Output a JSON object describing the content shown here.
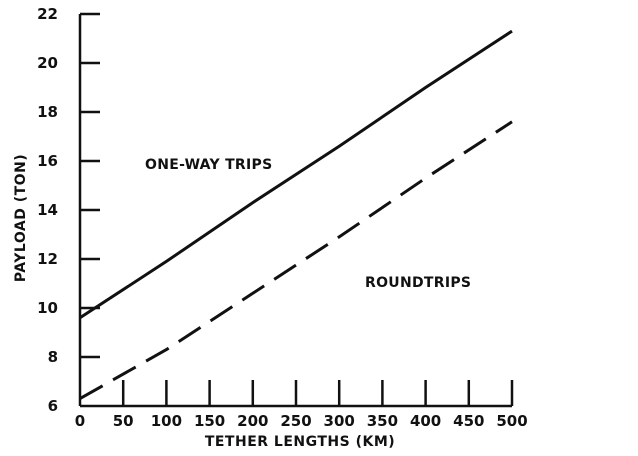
{
  "chart_data": {
    "type": "line",
    "title": "",
    "xlabel": "TETHER LENGTHS (KM)",
    "ylabel": "PAYLOAD (TON)",
    "xlim": [
      0,
      500
    ],
    "ylim": [
      6,
      22
    ],
    "xticks": [
      0,
      50,
      100,
      150,
      200,
      250,
      300,
      350,
      400,
      450,
      500
    ],
    "yticks": [
      6,
      8,
      10,
      12,
      14,
      16,
      18,
      20,
      22
    ],
    "grid": false,
    "series": [
      {
        "name": "ONE-WAY TRIPS",
        "style": "solid",
        "x": [
          0,
          100,
          200,
          300,
          400,
          500
        ],
        "y": [
          9.6,
          11.9,
          14.3,
          16.6,
          19.0,
          21.3
        ]
      },
      {
        "name": "ROUNDTRIPS",
        "style": "dashed",
        "x": [
          0,
          100,
          200,
          300,
          400,
          500
        ],
        "y": [
          6.3,
          8.3,
          10.6,
          12.9,
          15.3,
          17.6
        ]
      }
    ],
    "annotations": [
      {
        "text": "ONE-WAY TRIPS",
        "series": 0
      },
      {
        "text": "ROUNDTRIPS",
        "series": 1
      }
    ]
  }
}
